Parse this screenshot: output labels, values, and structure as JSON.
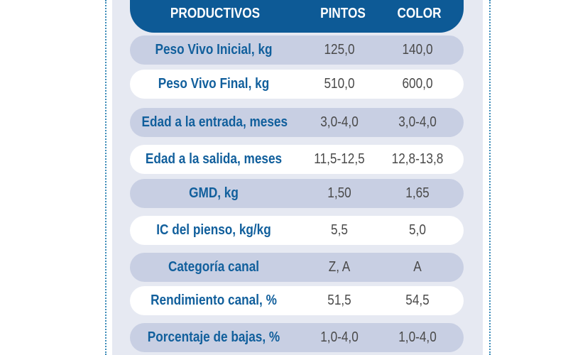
{
  "table": {
    "headers": {
      "product": "PRODUCTIVOS",
      "pintos": "PINTOS",
      "color": "COLOR"
    },
    "rows": [
      {
        "label": "Peso Vivo Inicial, kg",
        "pintos": "125,0",
        "color": "140,0"
      },
      {
        "label": "Peso Vivo Final, kg",
        "pintos": "510,0",
        "color": "600,0"
      },
      {
        "label": "Edad a la entrada, meses",
        "pintos": "3,0-4,0",
        "color": "3,0-4,0"
      },
      {
        "label": "Edad a la salida, meses",
        "pintos": "11,5-12,5",
        "color": "12,8-13,8"
      },
      {
        "label": "GMD, kg",
        "pintos": "1,50",
        "color": "1,65"
      },
      {
        "label": "IC del pienso, kg/kg",
        "pintos": "5,5",
        "color": "5,0"
      },
      {
        "label": "Categoría canal",
        "pintos": "Z, A",
        "color": "A"
      },
      {
        "label": "Rendimiento canal, %",
        "pintos": "51,5",
        "color": "54,5"
      },
      {
        "label": "Porcentaje de bajas, %",
        "pintos": "1,0-4,0",
        "color": "1,0-4,0"
      }
    ]
  },
  "colors": {
    "header_bg": "#0d5a96",
    "label_text": "#115f9c",
    "row_dark": "#c8cfe3",
    "row_light": "#ffffff",
    "panel_bg": "#e6e9f2"
  }
}
